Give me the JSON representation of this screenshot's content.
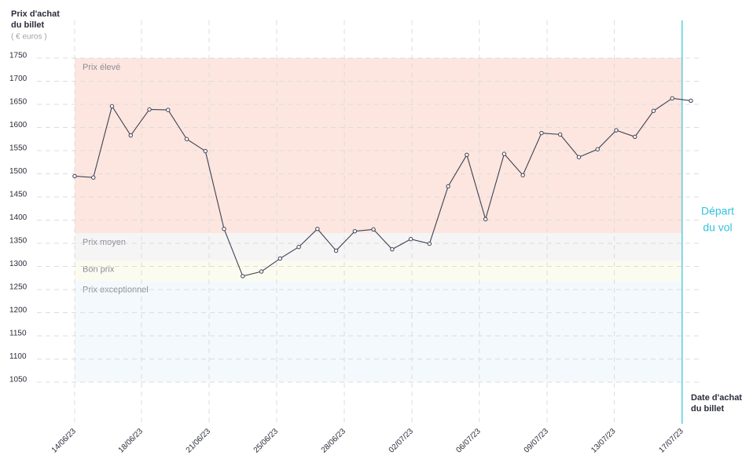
{
  "chart_data": {
    "type": "line",
    "y_label": [
      "Prix d'achat",
      "du billet"
    ],
    "y_unit": "( € euros )",
    "x_label": [
      "Date d'achat",
      "du billet"
    ],
    "x": [
      0,
      1,
      2,
      3,
      4,
      5,
      6,
      7,
      8,
      9,
      10,
      11,
      12,
      13,
      14,
      15,
      16,
      17,
      18,
      19,
      20,
      21,
      22,
      23,
      24,
      25,
      26,
      27,
      28,
      29,
      30,
      31,
      32,
      33
    ],
    "series": [
      {
        "color": "#3d4155",
        "values": [
          1495,
          1492,
          1646,
          1583,
          1639,
          1638,
          1575,
          1549,
          1381,
          1279,
          1289,
          1317,
          1342,
          1381,
          1334,
          1376,
          1380,
          1337,
          1359,
          1349,
          1473,
          1541,
          1402,
          1543,
          1497,
          1588,
          1585,
          1536,
          1553,
          1594,
          1580,
          1636,
          1663,
          1658
        ]
      }
    ],
    "xlim": [
      0,
      33
    ],
    "xticks": [
      {
        "value": 0,
        "label": "14/06/23"
      },
      {
        "value": 3.58,
        "label": "18/06/23"
      },
      {
        "value": 7.2,
        "label": "21/06/23"
      },
      {
        "value": 10.82,
        "label": "25/06/23"
      },
      {
        "value": 14.44,
        "label": "28/06/23"
      },
      {
        "value": 18.06,
        "label": "02/07/23"
      },
      {
        "value": 21.67,
        "label": "06/07/23"
      },
      {
        "value": 25.3,
        "label": "09/07/23"
      },
      {
        "value": 28.9,
        "label": "13/07/23"
      },
      {
        "value": 32.53,
        "label": "17/07/23"
      }
    ],
    "ylim": [
      1050,
      1750
    ],
    "yticks": [
      1050,
      1100,
      1150,
      1200,
      1250,
      1300,
      1350,
      1400,
      1450,
      1500,
      1550,
      1600,
      1650,
      1700,
      1750
    ],
    "grid": true,
    "bands": [
      {
        "label": "Prix élevé",
        "from": 1372,
        "to": 1750,
        "color": "#fde6df"
      },
      {
        "label": "Prix moyen",
        "from": 1313,
        "to": 1372,
        "color": "#f5f5f5"
      },
      {
        "label": "Bon prix",
        "from": 1269,
        "to": 1313,
        "color": "#fbfbef"
      },
      {
        "label": "Prix exceptionnel",
        "from": 1050,
        "to": 1269,
        "color": "#f3f9fc"
      }
    ],
    "departure": {
      "x": 32.53,
      "label": [
        "Départ",
        "du vol"
      ],
      "color": "#33c3dc"
    }
  }
}
